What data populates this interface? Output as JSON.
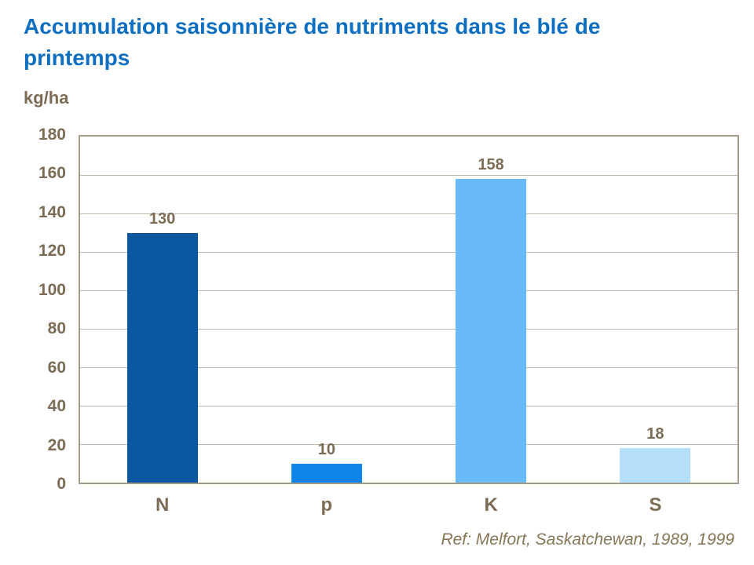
{
  "title": "Accumulation saisonnière de nutriments dans le blé de printemps",
  "y_axis_unit": "kg/ha",
  "reference": "Ref: Melfort, Saskatchewan, 1989, 1999",
  "colors": {
    "title": "#0D6FC1",
    "label_text": "#7C6C55",
    "reference_text": "#867656",
    "grid_line": "#C0B6A9",
    "plot_border": "#A69A8B",
    "bars": [
      "#0B57A0",
      "#0C84E8",
      "#69BAF8",
      "#B6DFFB"
    ]
  },
  "chart_data": {
    "type": "bar",
    "title": "Accumulation saisonnière de nutriments dans le blé de printemps",
    "categories": [
      "N",
      "p",
      "K",
      "S"
    ],
    "values": [
      130,
      10,
      158,
      18
    ],
    "data_labels": [
      "130",
      "10",
      "158",
      "18"
    ],
    "xlabel": "",
    "ylabel": "kg/ha",
    "ylim": [
      0,
      180
    ],
    "yticks": [
      0,
      20,
      40,
      60,
      80,
      100,
      120,
      140,
      160,
      180
    ],
    "grid": true,
    "legend_position": "none",
    "annotation": "Ref: Melfort, Saskatchewan, 1989, 1999"
  }
}
